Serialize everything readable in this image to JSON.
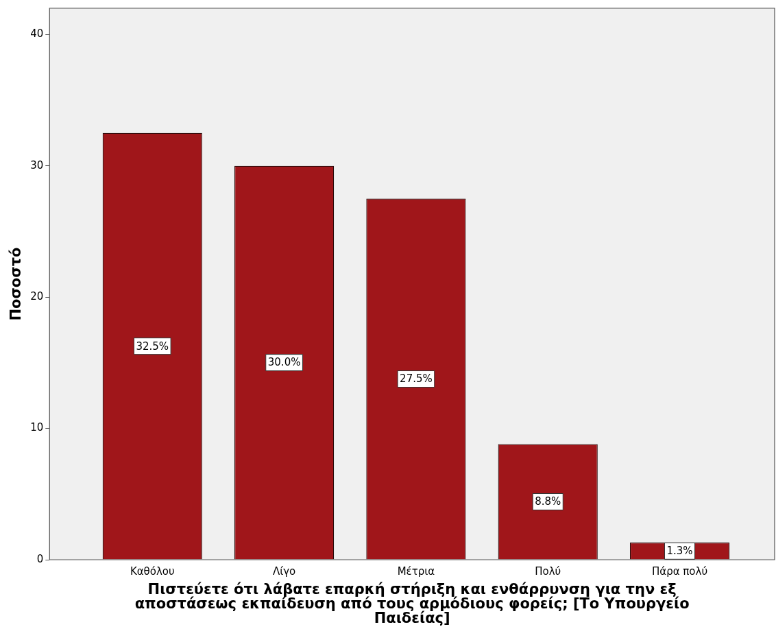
{
  "chart_data": {
    "type": "bar",
    "categories": [
      "Καθόλου",
      "Λίγο",
      "Μέτρια",
      "Πολύ",
      "Πάρα πολύ"
    ],
    "values": [
      32.5,
      30.0,
      27.5,
      8.8,
      1.3
    ],
    "value_labels": [
      "32.5%",
      "30.0%",
      "27.5%",
      "8.8%",
      "1.3%"
    ],
    "color": "#a0161a",
    "ylabel": "Ποσοστό",
    "xlabel": "Πιστεύετε ότι λάβατε επαρκή στήριξη και ενθάρρυνση για την εξ αποστάσεως εκπαίδευση από τους αρμόδιους φορείς; [Το Υπουργείο Παιδείας]",
    "ylim": [
      0,
      42
    ],
    "yticks": [
      0,
      10,
      20,
      30,
      40
    ],
    "grid": false,
    "legend": false
  }
}
